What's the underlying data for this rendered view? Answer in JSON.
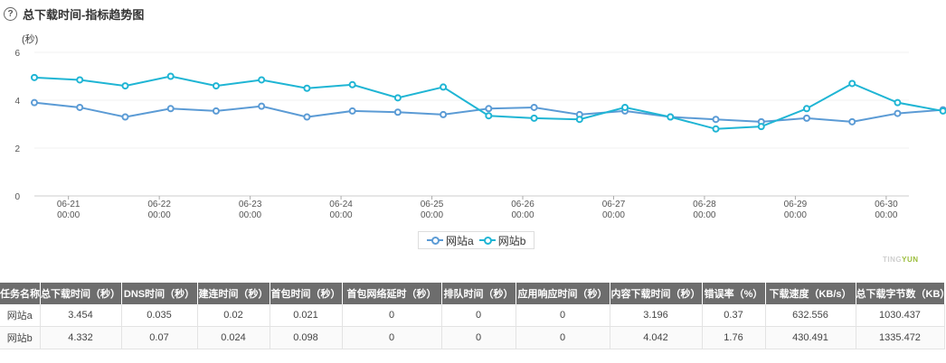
{
  "header": {
    "help_icon": "question-circle-icon",
    "title": "总下载时间-指标趋势图"
  },
  "chart_data": {
    "type": "line",
    "y_unit": "(秒)",
    "ylim": [
      0,
      6
    ],
    "y_ticks": [
      "0",
      "2",
      "4",
      "6"
    ],
    "x_ticks": [
      {
        "date": "06-21",
        "time": "00:00"
      },
      {
        "date": "06-22",
        "time": "00:00"
      },
      {
        "date": "06-23",
        "time": "00:00"
      },
      {
        "date": "06-24",
        "time": "00:00"
      },
      {
        "date": "06-25",
        "time": "00:00"
      },
      {
        "date": "06-26",
        "time": "00:00"
      },
      {
        "date": "06-27",
        "time": "00:00"
      },
      {
        "date": "06-28",
        "time": "00:00"
      },
      {
        "date": "06-29",
        "time": "00:00"
      },
      {
        "date": "06-30",
        "time": "00:00"
      }
    ],
    "x_range": [
      "06-20 15:00",
      "06-30 06:00"
    ],
    "x": [
      "06-20 15:00",
      "06-21 03:00",
      "06-21 15:00",
      "06-22 03:00",
      "06-22 15:00",
      "06-23 03:00",
      "06-23 15:00",
      "06-24 03:00",
      "06-24 15:00",
      "06-25 03:00",
      "06-25 15:00",
      "06-26 03:00",
      "06-26 15:00",
      "06-27 03:00",
      "06-27 15:00",
      "06-28 03:00",
      "06-28 15:00",
      "06-29 03:00",
      "06-29 15:00",
      "06-30 03:00",
      "06-30 15:00"
    ],
    "series": [
      {
        "name": "网站a",
        "color": "#5b9bd5",
        "values": [
          3.9,
          3.7,
          3.3,
          3.65,
          3.55,
          3.75,
          3.3,
          3.55,
          3.5,
          3.4,
          3.65,
          3.7,
          3.4,
          3.55,
          3.3,
          3.2,
          3.1,
          3.25,
          3.1,
          3.45,
          3.6
        ]
      },
      {
        "name": "网站b",
        "color": "#1fb5d4",
        "values": [
          4.95,
          4.85,
          4.6,
          5.0,
          4.6,
          4.85,
          4.5,
          4.65,
          4.1,
          4.55,
          3.35,
          3.25,
          3.2,
          3.7,
          3.3,
          2.8,
          2.9,
          3.65,
          4.7,
          3.9,
          3.55
        ]
      }
    ]
  },
  "watermark": {
    "prefix": "TING",
    "suffix": "YUN"
  },
  "table": {
    "headers": [
      "任务名称",
      "总下载时间（秒）",
      "DNS时间（秒）",
      "建连时间（秒）",
      "首包时间（秒）",
      "首包网络延时（秒）",
      "排队时间（秒）",
      "应用响应时间（秒）",
      "内容下载时间（秒）",
      "错误率（%）",
      "下载速度（KB/s）",
      "总下载字节数（KB）"
    ],
    "rows": [
      [
        "网站a",
        "3.454",
        "0.035",
        "0.02",
        "0.021",
        "0",
        "0",
        "0",
        "3.196",
        "0.37",
        "632.556",
        "1030.437"
      ],
      [
        "网站b",
        "4.332",
        "0.07",
        "0.024",
        "0.098",
        "0",
        "0",
        "0",
        "4.042",
        "1.76",
        "430.491",
        "1335.472"
      ]
    ]
  }
}
